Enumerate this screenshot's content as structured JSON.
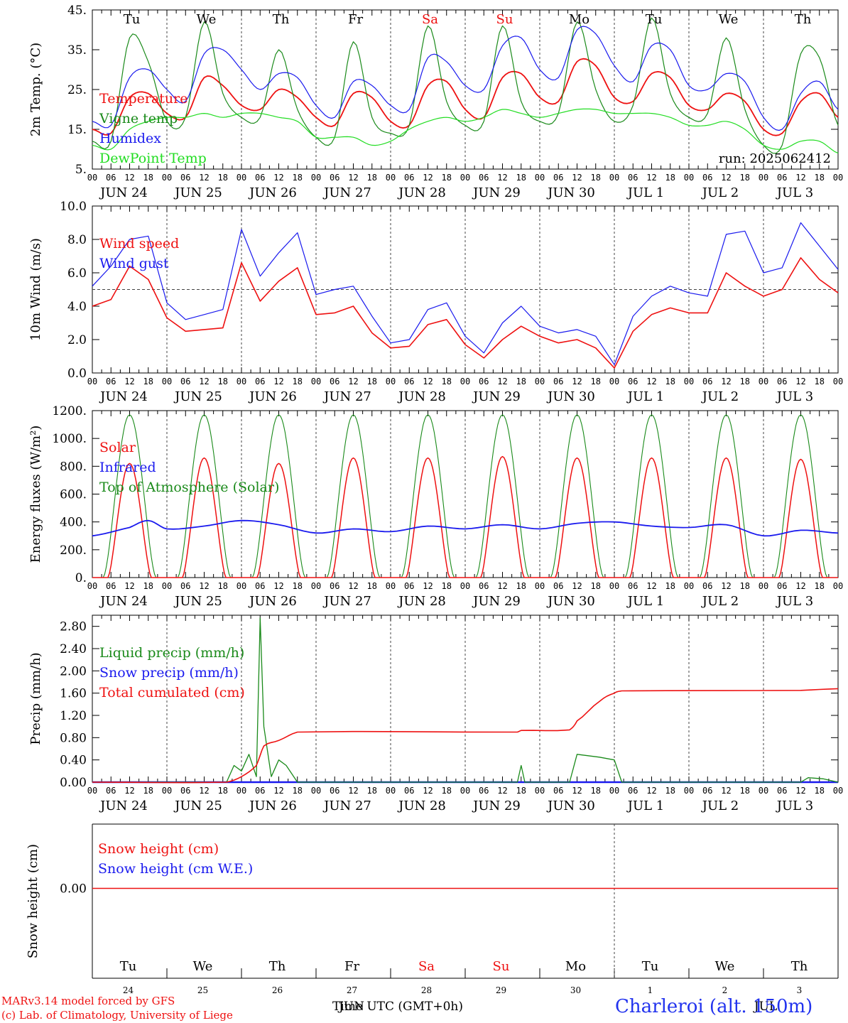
{
  "colors": {
    "red": "#ee1111",
    "blue": "#1a1aee",
    "green": "#1a8a1a",
    "lightgreen": "#22dd22",
    "axis": "#000000",
    "site": "#2233ee"
  },
  "x_axis": {
    "hour_ticks": [
      "00",
      "06",
      "12",
      "18"
    ],
    "final_hour": "00",
    "day_names": [
      "Tu",
      "We",
      "Th",
      "Fr",
      "Sa",
      "Su",
      "Mo",
      "Tu",
      "We",
      "Th"
    ],
    "weekend_index": [
      4,
      5
    ],
    "date_labels": [
      "JUN 24",
      "JUN 25",
      "JUN 26",
      "JUN 27",
      "JUN 28",
      "JUN 29",
      "JUN 30",
      "JUL  1",
      "JUL  2",
      "JUL  3"
    ],
    "day_numbers": [
      "24",
      "25",
      "26",
      "27",
      "28",
      "29",
      "30",
      "1",
      "2",
      "3"
    ],
    "month_label": "JUN",
    "month_label2": "JUL",
    "xlabel": "Time UTC (GMT+0h)"
  },
  "footer": {
    "model_line": "MARv3.14 model forced by GFS",
    "credit_line": "(c) Lab. of Climatology, University of Liege",
    "site_label": "Charleroi (alt. 150m)"
  },
  "chart_data": [
    {
      "id": "temperature",
      "type": "line",
      "ylabel": "2m Temp. (°C)",
      "ylim": [
        5,
        45
      ],
      "yticks": [
        "5.",
        "15.",
        "25.",
        "35.",
        "45."
      ],
      "ytick_values": [
        5,
        15,
        25,
        35,
        45
      ],
      "run_label": "run: 2025062412",
      "x_days": [
        0,
        0.25,
        0.5,
        0.75,
        1,
        1.25,
        1.5,
        1.75,
        2,
        2.25,
        2.5,
        2.75,
        3,
        3.25,
        3.5,
        3.75,
        4,
        4.25,
        4.5,
        4.75,
        5,
        5.25,
        5.5,
        5.75,
        6,
        6.25,
        6.5,
        6.75,
        7,
        7.25,
        7.5,
        7.75,
        8,
        8.25,
        8.5,
        8.75,
        9,
        9.25,
        9.5,
        9.75,
        10
      ],
      "series": [
        {
          "name": "Temperature",
          "color": "red",
          "values": [
            15,
            14,
            23,
            24,
            19,
            18,
            28,
            26,
            21,
            20,
            25,
            23,
            18,
            16,
            24,
            23,
            17,
            16,
            26,
            27,
            20,
            18,
            28,
            29,
            23,
            22,
            32,
            31,
            23,
            22,
            29,
            28,
            21,
            20,
            24,
            22,
            15,
            14,
            22,
            24,
            18
          ]
        },
        {
          "name": "Vigne temp",
          "color": "green",
          "values": [
            12,
            12,
            38,
            32,
            17,
            18,
            42,
            24,
            18,
            18,
            35,
            20,
            13,
            13,
            37,
            18,
            14,
            16,
            41,
            22,
            16,
            17,
            41,
            22,
            17,
            19,
            42,
            25,
            17,
            21,
            43,
            24,
            18,
            19,
            38,
            20,
            11,
            11,
            34,
            33,
            16
          ]
        },
        {
          "name": "Humidex",
          "color": "blue",
          "values": [
            17,
            16,
            28,
            30,
            25,
            22,
            34,
            35,
            30,
            25,
            29,
            28,
            21,
            18,
            27,
            26,
            21,
            20,
            33,
            32,
            26,
            25,
            36,
            38,
            30,
            28,
            40,
            39,
            31,
            27,
            36,
            35,
            26,
            25,
            29,
            27,
            18,
            15,
            24,
            27,
            20
          ]
        },
        {
          "name": "DewPoint Temp",
          "color": "lightgreen",
          "values": [
            11,
            10,
            15,
            17,
            18,
            18,
            19,
            18,
            19,
            19,
            18,
            17,
            13,
            13,
            13,
            11,
            12,
            15,
            17,
            18,
            17,
            18,
            20,
            19,
            18,
            19,
            20,
            20,
            19,
            19,
            19,
            18,
            16,
            16,
            17,
            15,
            11,
            10,
            12,
            12,
            9
          ]
        }
      ]
    },
    {
      "id": "wind",
      "type": "line",
      "ylabel": "10m Wind (m/s)",
      "ylim": [
        0,
        10
      ],
      "yticks": [
        "0.0",
        "2.0",
        "4.0",
        "6.0",
        "8.0",
        "10.0"
      ],
      "ytick_values": [
        0,
        2,
        4,
        6,
        8,
        10
      ],
      "reference_line": 5,
      "x_days": [
        0,
        0.25,
        0.5,
        0.75,
        1,
        1.25,
        1.5,
        1.75,
        2,
        2.25,
        2.5,
        2.75,
        3,
        3.25,
        3.5,
        3.75,
        4,
        4.25,
        4.5,
        4.75,
        5,
        5.25,
        5.5,
        5.75,
        6,
        6.25,
        6.5,
        6.75,
        7,
        7.25,
        7.5,
        7.75,
        8,
        8.25,
        8.5,
        8.75,
        9,
        9.25,
        9.5,
        9.75,
        10
      ],
      "series": [
        {
          "name": "Wind speed",
          "color": "red",
          "values": [
            4.0,
            4.4,
            6.4,
            5.6,
            3.3,
            2.5,
            2.6,
            2.7,
            6.6,
            4.3,
            5.5,
            6.3,
            3.5,
            3.6,
            4.0,
            2.4,
            1.5,
            1.6,
            2.9,
            3.2,
            1.7,
            0.9,
            2.0,
            2.8,
            2.2,
            1.8,
            2.0,
            1.5,
            0.3,
            2.5,
            3.5,
            3.9,
            3.6,
            3.6,
            6.0,
            5.2,
            4.6,
            5.0,
            6.9,
            5.6,
            4.8
          ]
        },
        {
          "name": "Wind gust",
          "color": "blue",
          "values": [
            5.2,
            6.4,
            8.0,
            8.2,
            4.2,
            3.2,
            3.5,
            3.8,
            8.6,
            5.8,
            7.2,
            8.4,
            4.7,
            5.0,
            5.2,
            3.4,
            1.8,
            2.0,
            3.8,
            4.2,
            2.2,
            1.2,
            3.0,
            4.0,
            2.8,
            2.4,
            2.6,
            2.2,
            0.5,
            3.4,
            4.6,
            5.2,
            4.8,
            4.6,
            8.3,
            8.5,
            6.0,
            6.3,
            9.0,
            7.6,
            6.2
          ]
        }
      ]
    },
    {
      "id": "energy",
      "type": "line",
      "ylabel": "Energy fluxes (W/m²)",
      "ylim": [
        0,
        1200
      ],
      "yticks": [
        "0.",
        "200.",
        "400.",
        "600.",
        "800.",
        "1000.",
        "1200."
      ],
      "ytick_values": [
        0,
        200,
        400,
        600,
        800,
        1000,
        1200
      ],
      "solar_peaks": [
        820,
        860,
        820,
        860,
        860,
        870,
        860,
        860,
        860,
        850
      ],
      "toa_peak": 1170,
      "infrared_x_days": [
        0,
        0.5,
        0.75,
        1,
        1.5,
        2,
        2.5,
        3,
        3.5,
        4,
        4.5,
        5,
        5.5,
        6,
        6.5,
        7,
        7.5,
        8,
        8.5,
        9,
        9.5,
        10
      ],
      "infrared_values": [
        300,
        360,
        410,
        350,
        370,
        410,
        380,
        320,
        350,
        330,
        370,
        350,
        380,
        350,
        390,
        400,
        370,
        360,
        380,
        300,
        340,
        320
      ],
      "series": [
        {
          "name": "Solar",
          "color": "red"
        },
        {
          "name": "Infrared",
          "color": "blue"
        },
        {
          "name": "Top of Atmosphere (Solar)",
          "color": "green"
        }
      ]
    },
    {
      "id": "precip",
      "type": "line",
      "ylabel": "Precip (mm/h)",
      "ylim": [
        0,
        3.0
      ],
      "yticks": [
        "0.00",
        "0.40",
        "0.80",
        "1.20",
        "1.60",
        "2.00",
        "2.40",
        "2.80"
      ],
      "ytick_values": [
        0,
        0.4,
        0.8,
        1.2,
        1.6,
        2.0,
        2.4,
        2.8
      ],
      "series": [
        {
          "name": "Liquid precip (mm/h)",
          "color": "green",
          "x": [
            0,
            1.8,
            1.9,
            2.0,
            2.1,
            2.2,
            2.25,
            2.3,
            2.4,
            2.5,
            2.6,
            2.75,
            2.9,
            5.7,
            5.75,
            5.8,
            6.4,
            6.5,
            6.8,
            7.0,
            7.1,
            9.5,
            9.6,
            9.8,
            10
          ],
          "values": [
            0,
            0,
            0.3,
            0.2,
            0.5,
            0.1,
            2.95,
            1.0,
            0.1,
            0.4,
            0.3,
            0,
            0,
            0,
            0.3,
            0,
            0,
            0.5,
            0.45,
            0.4,
            0,
            0,
            0.08,
            0.06,
            0
          ]
        },
        {
          "name": "Snow precip (mm/h)",
          "color": "blue",
          "x": [
            0,
            10
          ],
          "values": [
            0,
            0
          ]
        },
        {
          "name": "Total cumulated (cm)",
          "color": "red",
          "x": [
            0,
            1.8,
            2.0,
            2.2,
            2.3,
            2.5,
            2.75,
            5.7,
            5.75,
            6.4,
            6.5,
            6.8,
            7.0,
            7.1,
            9.5,
            10
          ],
          "values": [
            0,
            0,
            0.1,
            0.3,
            0.65,
            0.75,
            0.9,
            0.9,
            0.93,
            0.94,
            1.1,
            1.45,
            1.6,
            1.64,
            1.65,
            1.68
          ]
        }
      ]
    },
    {
      "id": "snow",
      "type": "line",
      "ylabel": "Snow height (cm)",
      "yticks": [
        "0.00"
      ],
      "ytick_values": [
        0
      ],
      "series": [
        {
          "name": "Snow height (cm)",
          "color": "red",
          "x": [
            0,
            10
          ],
          "values": [
            0,
            0
          ]
        },
        {
          "name": "Snow height (cm W.E.)",
          "color": "blue"
        }
      ]
    }
  ]
}
